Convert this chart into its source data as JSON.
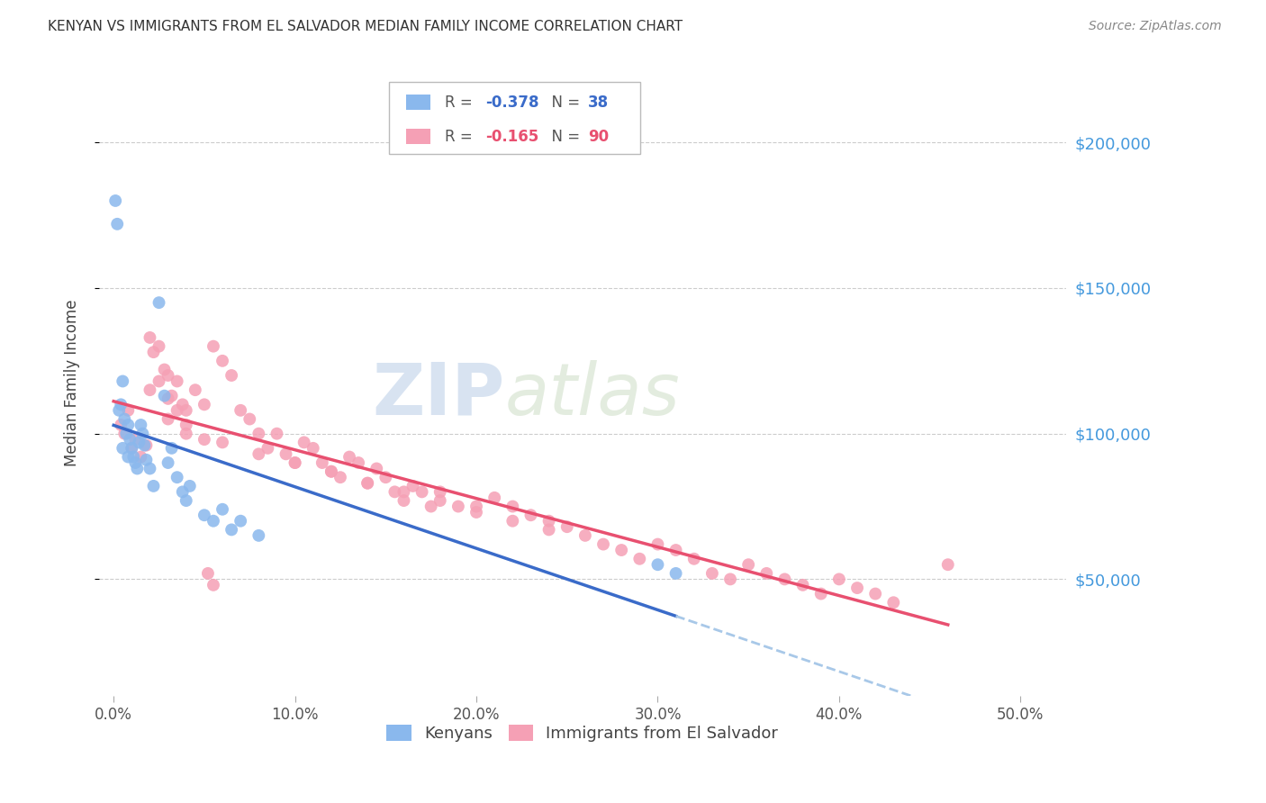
{
  "title": "KENYAN VS IMMIGRANTS FROM EL SALVADOR MEDIAN FAMILY INCOME CORRELATION CHART",
  "source": "Source: ZipAtlas.com",
  "ylabel": "Median Family Income",
  "xlabel_ticks": [
    "0.0%",
    "10.0%",
    "20.0%",
    "30.0%",
    "40.0%",
    "50.0%"
  ],
  "xlabel_vals": [
    0.0,
    0.1,
    0.2,
    0.3,
    0.4,
    0.5
  ],
  "ylabel_ticks": [
    "$50,000",
    "$100,000",
    "$150,000",
    "$200,000"
  ],
  "ylabel_vals": [
    50000,
    100000,
    150000,
    200000
  ],
  "xlim": [
    -0.008,
    0.525
  ],
  "ylim": [
    10000,
    225000
  ],
  "kenyan_R": "-0.378",
  "kenyan_N": "38",
  "salvador_R": "-0.165",
  "salvador_N": "90",
  "kenyan_color": "#8ab8ed",
  "salvador_color": "#f5a0b5",
  "kenyan_line_color": "#3a6bc9",
  "salvador_line_color": "#e85070",
  "dashed_line_color": "#a8c8e8",
  "watermark_zip": "ZIP",
  "watermark_atlas": "atlas",
  "kenyan_x": [
    0.001,
    0.002,
    0.003,
    0.004,
    0.005,
    0.006,
    0.007,
    0.008,
    0.009,
    0.01,
    0.011,
    0.012,
    0.013,
    0.014,
    0.015,
    0.016,
    0.017,
    0.018,
    0.02,
    0.022,
    0.025,
    0.028,
    0.03,
    0.032,
    0.035,
    0.038,
    0.04,
    0.042,
    0.05,
    0.055,
    0.06,
    0.065,
    0.07,
    0.08,
    0.3,
    0.31,
    0.005,
    0.008
  ],
  "kenyan_y": [
    180000,
    172000,
    108000,
    110000,
    118000,
    105000,
    100000,
    103000,
    98000,
    95000,
    92000,
    90000,
    88000,
    97000,
    103000,
    100000,
    96000,
    91000,
    88000,
    82000,
    145000,
    113000,
    90000,
    95000,
    85000,
    80000,
    77000,
    82000,
    72000,
    70000,
    74000,
    67000,
    70000,
    65000,
    55000,
    52000,
    95000,
    92000
  ],
  "salvador_x": [
    0.004,
    0.006,
    0.008,
    0.01,
    0.012,
    0.015,
    0.018,
    0.02,
    0.022,
    0.025,
    0.028,
    0.03,
    0.032,
    0.035,
    0.038,
    0.04,
    0.045,
    0.05,
    0.055,
    0.06,
    0.065,
    0.07,
    0.075,
    0.08,
    0.085,
    0.09,
    0.095,
    0.1,
    0.105,
    0.11,
    0.115,
    0.12,
    0.125,
    0.13,
    0.135,
    0.14,
    0.145,
    0.15,
    0.155,
    0.16,
    0.165,
    0.17,
    0.175,
    0.18,
    0.19,
    0.2,
    0.21,
    0.22,
    0.23,
    0.24,
    0.25,
    0.26,
    0.27,
    0.28,
    0.29,
    0.3,
    0.31,
    0.32,
    0.33,
    0.34,
    0.35,
    0.36,
    0.37,
    0.38,
    0.39,
    0.4,
    0.41,
    0.42,
    0.43,
    0.46,
    0.03,
    0.04,
    0.06,
    0.08,
    0.1,
    0.12,
    0.14,
    0.16,
    0.18,
    0.2,
    0.22,
    0.24,
    0.02,
    0.025,
    0.03,
    0.035,
    0.04,
    0.05,
    0.052,
    0.055
  ],
  "salvador_y": [
    103000,
    100000,
    108000,
    95000,
    98000,
    92000,
    96000,
    133000,
    128000,
    130000,
    122000,
    120000,
    113000,
    118000,
    110000,
    108000,
    115000,
    110000,
    130000,
    125000,
    120000,
    108000,
    105000,
    100000,
    95000,
    100000,
    93000,
    90000,
    97000,
    95000,
    90000,
    87000,
    85000,
    92000,
    90000,
    83000,
    88000,
    85000,
    80000,
    77000,
    82000,
    80000,
    75000,
    80000,
    75000,
    75000,
    78000,
    75000,
    72000,
    70000,
    68000,
    65000,
    62000,
    60000,
    57000,
    62000,
    60000,
    57000,
    52000,
    50000,
    55000,
    52000,
    50000,
    48000,
    45000,
    50000,
    47000,
    45000,
    42000,
    55000,
    105000,
    100000,
    97000,
    93000,
    90000,
    87000,
    83000,
    80000,
    77000,
    73000,
    70000,
    67000,
    115000,
    118000,
    112000,
    108000,
    103000,
    98000,
    52000,
    48000
  ]
}
